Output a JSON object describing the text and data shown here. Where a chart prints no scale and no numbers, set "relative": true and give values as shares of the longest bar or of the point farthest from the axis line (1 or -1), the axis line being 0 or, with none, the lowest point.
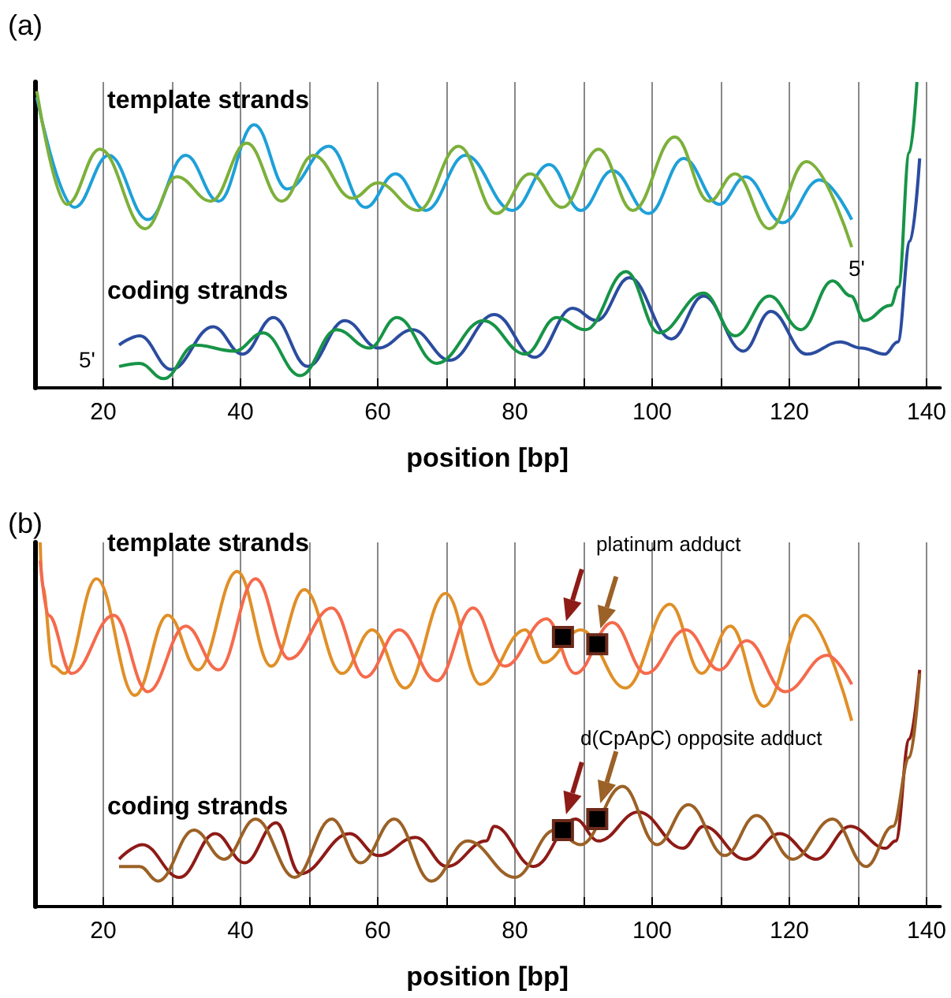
{
  "chart_data": [
    {
      "type": "line",
      "title": "(a)",
      "xlabel": "position [bp]",
      "relative": true,
      "xlim": [
        10,
        142
      ],
      "xticks": [
        20,
        {
          "value": 30,
          "label": null
        },
        40,
        {
          "value": 50,
          "label": null
        },
        60,
        {
          "value": 70,
          "label": null
        },
        80,
        {
          "value": 90,
          "label": null
        },
        100,
        {
          "value": 110,
          "label": null
        },
        120,
        {
          "value": 130,
          "label": null
        },
        140
      ],
      "grid": "x",
      "marker": "none",
      "annotations": [
        "template strands",
        "coding strands",
        "5'",
        "5'"
      ],
      "series": [
        {
          "color": "#1ea0d8",
          "x": [
            10.3,
            15.8,
            20.8,
            26.5,
            32,
            36.8,
            42,
            46.8,
            52.9,
            58.2,
            62.6,
            67,
            72.8,
            79.6,
            85,
            89.6,
            94.2,
            99.5,
            104.6,
            109.8,
            113.6,
            119,
            124.4,
            129.1
          ],
          "values": [
            0.95,
            0.59,
            0.76,
            0.55,
            0.76,
            0.61,
            0.86,
            0.65,
            0.79,
            0.59,
            0.7,
            0.58,
            0.76,
            0.58,
            0.73,
            0.58,
            0.71,
            0.57,
            0.75,
            0.6,
            0.69,
            0.54,
            0.68,
            0.55
          ]
        },
        {
          "color": "#7db03b",
          "x": [
            10.3,
            14.7,
            19.5,
            26.1,
            30.7,
            35.7,
            40.9,
            46,
            50.6,
            56.3,
            60,
            65.9,
            71.8,
            77.3,
            82.2,
            86.9,
            92.2,
            97.2,
            103.3,
            108.3,
            112.1,
            117.1,
            122.5,
            129.1
          ],
          "values": [
            0.97,
            0.6,
            0.78,
            0.52,
            0.69,
            0.61,
            0.8,
            0.61,
            0.76,
            0.62,
            0.67,
            0.58,
            0.79,
            0.57,
            0.7,
            0.59,
            0.78,
            0.58,
            0.82,
            0.61,
            0.7,
            0.52,
            0.74,
            0.46
          ]
        },
        {
          "color": "#2b4c9f",
          "x": [
            22.3,
            25.3,
            29.9,
            36,
            40.3,
            44.8,
            49.8,
            55.2,
            60.1,
            65.1,
            70.5,
            77,
            82.9,
            88.4,
            91.9,
            96.7,
            102.8,
            107.5,
            113.3,
            117.3,
            122.5,
            127.4,
            130.5,
            133.9,
            135.8,
            137.6,
            139
          ],
          "values": [
            0.14,
            0.17,
            0.06,
            0.2,
            0.11,
            0.23,
            0.07,
            0.22,
            0.13,
            0.19,
            0.09,
            0.24,
            0.1,
            0.26,
            0.22,
            0.36,
            0.16,
            0.3,
            0.12,
            0.25,
            0.11,
            0.15,
            0.13,
            0.11,
            0.15,
            0.48,
            0.75
          ]
        },
        {
          "color": "#179447",
          "x": [
            22.3,
            25.3,
            28.8,
            33.4,
            39.1,
            43.3,
            48.7,
            54,
            58.8,
            62.8,
            68.6,
            75.4,
            81.5,
            86.1,
            90.3,
            96.2,
            101,
            107.5,
            112.1,
            117.1,
            121.7,
            126.3,
            129,
            130.9,
            134.8,
            135.9,
            137.5,
            138.6
          ],
          "values": [
            0.07,
            0.08,
            0.03,
            0.14,
            0.12,
            0.18,
            0.04,
            0.19,
            0.13,
            0.23,
            0.08,
            0.22,
            0.11,
            0.23,
            0.19,
            0.38,
            0.18,
            0.31,
            0.17,
            0.3,
            0.19,
            0.35,
            0.3,
            0.22,
            0.27,
            0.33,
            0.77,
            1.0
          ]
        }
      ]
    },
    {
      "type": "line",
      "title": "(b)",
      "xlabel": "position [bp]",
      "relative": true,
      "xlim": [
        10,
        142
      ],
      "xticks": [
        20,
        {
          "value": 30,
          "label": null
        },
        40,
        {
          "value": 50,
          "label": null
        },
        60,
        {
          "value": 70,
          "label": null
        },
        80,
        {
          "value": 90,
          "label": null
        },
        100,
        {
          "value": 110,
          "label": null
        },
        120,
        {
          "value": 130,
          "label": null
        },
        140
      ],
      "grid": "x",
      "marker": "none",
      "annotations": [
        "template strands",
        "coding strands",
        "platinum adduct",
        "d(CpApC) opposite adduct"
      ],
      "series": [
        {
          "color": "#e08f27",
          "x": [
            10.8,
            11.1,
            12.7,
            14.3,
            19,
            24.6,
            29.4,
            33.8,
            39.5,
            44.5,
            49.3,
            54.8,
            59.2,
            64,
            69.9,
            75,
            81.5,
            84.2,
            89.6,
            96.1,
            102.6,
            107.2,
            111.4,
            116.3,
            122.2,
            129.1
          ],
          "values": [
            1.0,
            0.88,
            0.66,
            0.64,
            0.9,
            0.58,
            0.8,
            0.65,
            0.92,
            0.66,
            0.87,
            0.64,
            0.76,
            0.6,
            0.86,
            0.61,
            0.76,
            0.67,
            0.76,
            0.6,
            0.83,
            0.64,
            0.77,
            0.55,
            0.8,
            0.51
          ]
        },
        {
          "color": "#f56a4c",
          "x": [
            10.8,
            12,
            15.4,
            21.5,
            26.5,
            32,
            36.8,
            42.2,
            47.1,
            53.3,
            58.2,
            63.1,
            68.6,
            73.9,
            78.5,
            84.6,
            88.8,
            94.2,
            99.1,
            104.9,
            109.8,
            113.8,
            119.4,
            125.5,
            129.1
          ],
          "values": [
            0.95,
            0.8,
            0.64,
            0.8,
            0.59,
            0.77,
            0.65,
            0.9,
            0.68,
            0.82,
            0.63,
            0.76,
            0.62,
            0.82,
            0.66,
            0.79,
            0.64,
            0.78,
            0.64,
            0.76,
            0.65,
            0.73,
            0.59,
            0.69,
            0.61
          ]
        },
        {
          "color": "#8e1b16",
          "x": [
            22.3,
            25.7,
            31.1,
            36.3,
            40.6,
            45.2,
            48.7,
            55.9,
            60.1,
            65.5,
            70.1,
            75.8,
            77,
            82.7,
            88.8,
            92.2,
            98,
            104.5,
            107.5,
            113.6,
            118.6,
            123.9,
            128.9,
            134,
            135.5,
            137.5,
            139
          ],
          "values": [
            0.13,
            0.17,
            0.08,
            0.2,
            0.12,
            0.23,
            0.09,
            0.2,
            0.14,
            0.19,
            0.11,
            0.18,
            0.22,
            0.11,
            0.24,
            0.18,
            0.26,
            0.16,
            0.22,
            0.13,
            0.2,
            0.13,
            0.22,
            0.16,
            0.18,
            0.46,
            0.65
          ]
        },
        {
          "color": "#9b6126",
          "x": [
            22.3,
            25.3,
            28,
            33.2,
            37.6,
            42.2,
            47.9,
            53.3,
            57.5,
            62.4,
            67.8,
            73.1,
            80,
            85.8,
            89.6,
            95.7,
            100.7,
            105.3,
            110.6,
            115.2,
            120.5,
            126.3,
            131.2,
            135.1,
            137.5,
            139
          ],
          "values": [
            0.11,
            0.11,
            0.07,
            0.21,
            0.13,
            0.24,
            0.08,
            0.24,
            0.12,
            0.24,
            0.07,
            0.18,
            0.08,
            0.21,
            0.17,
            0.33,
            0.17,
            0.28,
            0.14,
            0.25,
            0.13,
            0.24,
            0.11,
            0.22,
            0.41,
            0.64
          ]
        },
        {
          "type": "scatter",
          "color": "#000000",
          "marker": "square",
          "x": [
            87,
            92
          ],
          "values": [
            0.74,
            0.72
          ]
        },
        {
          "type": "scatter",
          "color": "#000000",
          "marker": "square",
          "x": [
            87,
            92
          ],
          "values": [
            0.21,
            0.24
          ]
        }
      ]
    }
  ]
}
